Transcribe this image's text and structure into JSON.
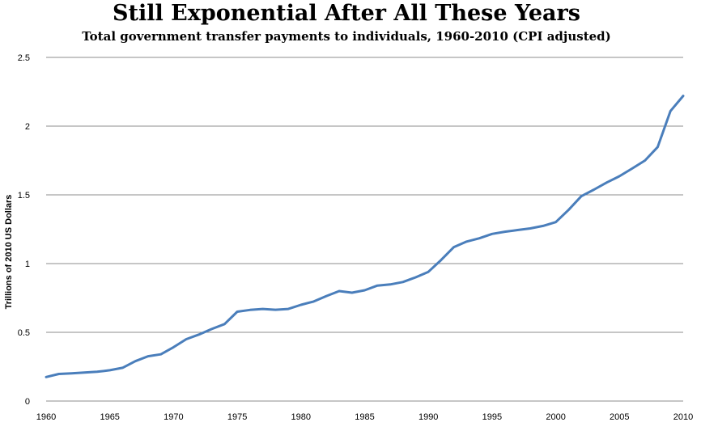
{
  "chart_data": {
    "type": "line",
    "title": "Still Exponential After All These Years",
    "subtitle": "Total government transfer payments to individuals,  1960-2010 (CPI adjusted)",
    "xlabel": "",
    "ylabel": "Trillions of 2010 US Dollars",
    "xlim": [
      1960,
      2010
    ],
    "ylim": [
      0,
      2.5
    ],
    "x_ticks": [
      "1960",
      "1965",
      "1970",
      "1975",
      "1980",
      "1985",
      "1990",
      "1995",
      "2000",
      "2005",
      "2010"
    ],
    "y_ticks": [
      "0",
      "0.5",
      "1",
      "1.5",
      "2",
      "2.5"
    ],
    "grid": "horizontal",
    "legend": "none",
    "line_color": "#4a7ebb",
    "series": [
      {
        "x": [
          1960,
          1961,
          1962,
          1963,
          1964,
          1965,
          1966,
          1967,
          1968,
          1969,
          1970,
          1971,
          1972,
          1973,
          1974,
          1975,
          1976,
          1977,
          1978,
          1979,
          1980,
          1981,
          1982,
          1983,
          1984,
          1985,
          1986,
          1987,
          1988,
          1989,
          1990,
          1991,
          1992,
          1993,
          1994,
          1995,
          1996,
          1997,
          1998,
          1999,
          2000,
          2001,
          2002,
          2003,
          2004,
          2005,
          2006,
          2007,
          2008,
          2009,
          2010
        ],
        "values": [
          0.175,
          0.197,
          0.202,
          0.207,
          0.213,
          0.224,
          0.242,
          0.29,
          0.326,
          0.34,
          0.392,
          0.45,
          0.484,
          0.524,
          0.56,
          0.65,
          0.663,
          0.67,
          0.664,
          0.67,
          0.7,
          0.724,
          0.764,
          0.8,
          0.788,
          0.806,
          0.84,
          0.848,
          0.866,
          0.9,
          0.94,
          1.026,
          1.12,
          1.16,
          1.184,
          1.216,
          1.232,
          1.244,
          1.256,
          1.274,
          1.302,
          1.39,
          1.49,
          1.538,
          1.59,
          1.636,
          1.692,
          1.75,
          1.848,
          2.11,
          2.22
        ]
      }
    ]
  }
}
